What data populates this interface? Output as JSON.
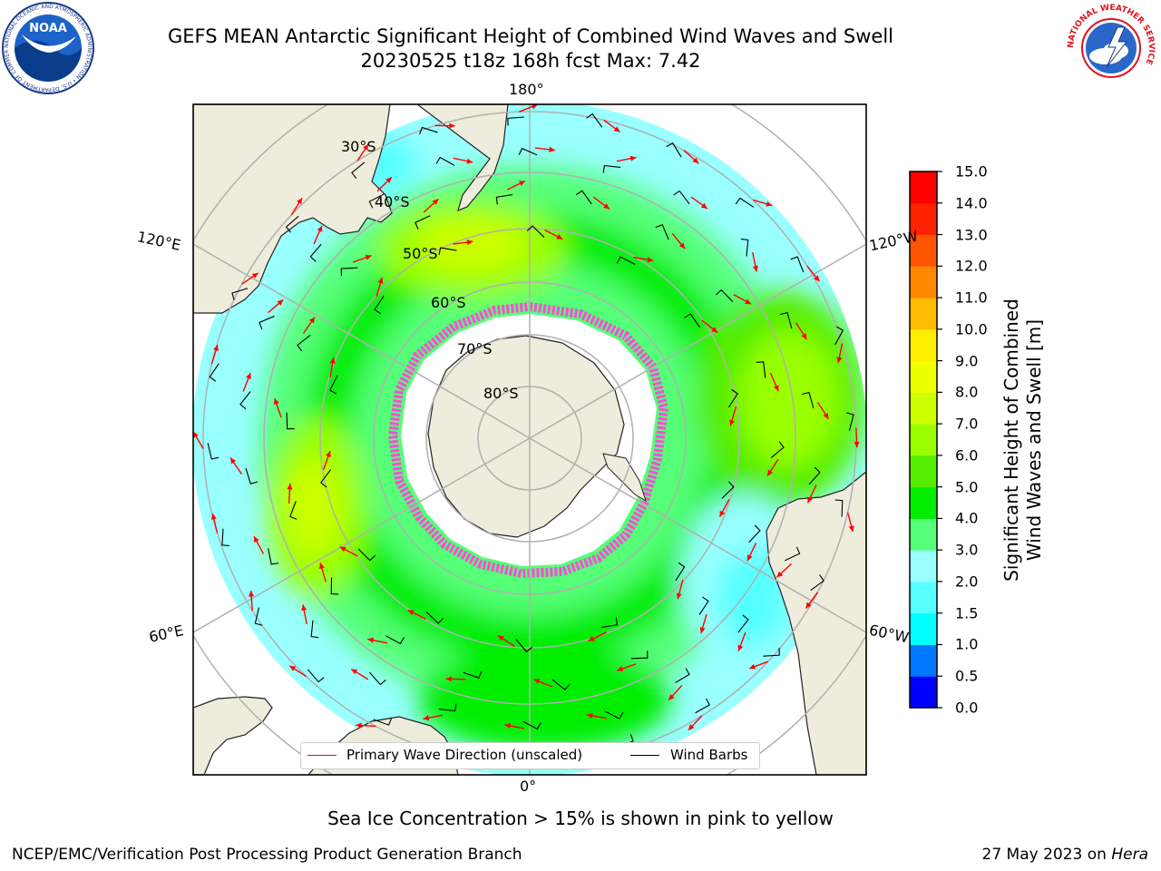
{
  "title": {
    "line1": "GEFS MEAN Antarctic Significant Height of Combined Wind Waves and Swell",
    "line2": "20230525 t18z 168h fcst   Max: 7.42"
  },
  "map": {
    "projection": "south polar stereographic",
    "meridian_labels": [
      "180°",
      "120°E",
      "120°W",
      "60°E",
      "60°W",
      "0°"
    ],
    "latitude_labels": [
      "30°S",
      "40°S",
      "50°S",
      "60°S",
      "70°S",
      "80°S"
    ],
    "colors": {
      "land": "#eeecdc",
      "coast": "#222222",
      "gridlines": "#b0b0b0",
      "wave_arrow": "#ff0000",
      "sea_ice": "#ff44dd"
    }
  },
  "colorbar": {
    "label_line1": "Significant Height of Combined",
    "label_line2": "Wind Waves and Swell [m]",
    "ticks": [
      "0.0",
      "0.5",
      "1.0",
      "1.5",
      "2.0",
      "3.0",
      "4.0",
      "5.0",
      "6.0",
      "7.0",
      "8.0",
      "9.0",
      "10.0",
      "11.0",
      "12.0",
      "13.0",
      "14.0",
      "15.0"
    ],
    "colors": [
      "#0000ff",
      "#0077ff",
      "#00ffff",
      "#55ffff",
      "#99ffff",
      "#55ff77",
      "#00ee00",
      "#55ee00",
      "#99ff00",
      "#ccff00",
      "#eeff00",
      "#ffee00",
      "#ffbb00",
      "#ff8800",
      "#ff5500",
      "#ff2200",
      "#ff0000"
    ]
  },
  "legend": {
    "wave": "Primary Wave Direction (unscaled)",
    "wind": "Wind Barbs"
  },
  "footer": {
    "ice_note": "Sea Ice Concentration > 15% is shown in pink to yellow",
    "left": "NCEP/EMC/Verification Post Processing Product Generation Branch",
    "date": "27 May 2023 on ",
    "machine": "Hera"
  },
  "logos": {
    "noaa_text": "NOAA",
    "noaa_ring": "NATIONAL OCEANIC AND ATMOSPHERIC ADMINISTRATION • U.S. DEPARTMENT OF COMMERCE",
    "nws_ring": "NATIONAL WEATHER SERVICE"
  }
}
